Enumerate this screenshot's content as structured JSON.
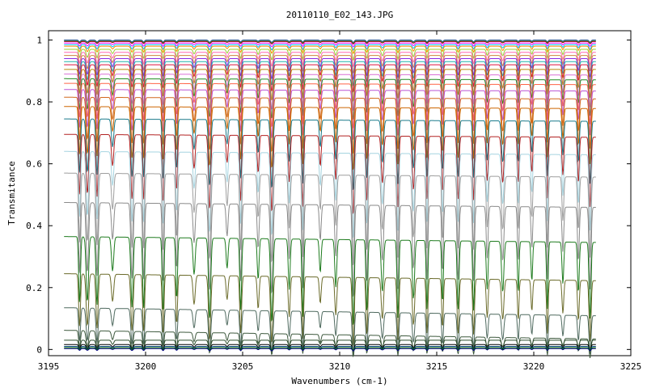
{
  "chart_data": {
    "type": "line",
    "title": "20110110_E02_143.JPG",
    "xlabel": "Wavenumbers (cm-1)",
    "ylabel": "Transmitance",
    "xlim": [
      3195,
      3225
    ],
    "ylim": [
      -0.02,
      1.03
    ],
    "x_data_range": [
      3195.8,
      3223.2
    ],
    "xticks": [
      3195,
      3200,
      3205,
      3210,
      3215,
      3220,
      3225
    ],
    "yticks": [
      0,
      0.2,
      0.4,
      0.6,
      0.8,
      1
    ],
    "ytick_labels": [
      "0",
      "0.2",
      "0.4",
      "0.6",
      "0.8",
      "1"
    ],
    "grid": false,
    "legend": "none",
    "absorption_lines_cm1": [
      3196.6,
      3197.0,
      3197.5,
      3198.3,
      3199.3,
      3199.9,
      3200.9,
      3201.6,
      3202.5,
      3203.3,
      3204.2,
      3204.9,
      3205.8,
      3206.5,
      3207.4,
      3208.1,
      3209.0,
      3209.8,
      3210.7,
      3211.4,
      3212.2,
      3213.0,
      3213.8,
      3214.5,
      3215.3,
      3216.1,
      3216.9,
      3217.6,
      3218.4,
      3219.2,
      3219.9,
      3220.7,
      3221.5,
      3222.3,
      3222.9
    ],
    "series": [
      {
        "baseline": 1.0,
        "color": "#1f3f9f"
      },
      {
        "baseline": 0.998,
        "color": "#2e8b57"
      },
      {
        "baseline": 0.995,
        "color": "#8b0000"
      },
      {
        "baseline": 0.99,
        "color": "#ff00ff"
      },
      {
        "baseline": 0.985,
        "color": "#00bfff"
      },
      {
        "baseline": 0.98,
        "color": "#ff8c00"
      },
      {
        "baseline": 0.97,
        "color": "#9acd32"
      },
      {
        "baseline": 0.96,
        "color": "#ff69b4"
      },
      {
        "baseline": 0.95,
        "color": "#cd853f"
      },
      {
        "baseline": 0.94,
        "color": "#8a2be2"
      },
      {
        "baseline": 0.93,
        "color": "#20b2aa"
      },
      {
        "baseline": 0.92,
        "color": "#dc143c"
      },
      {
        "baseline": 0.905,
        "color": "#b8860b"
      },
      {
        "baseline": 0.89,
        "color": "#da70d6"
      },
      {
        "baseline": 0.875,
        "color": "#228b22"
      },
      {
        "baseline": 0.86,
        "color": "#ff6347"
      },
      {
        "baseline": 0.84,
        "color": "#ba55d3"
      },
      {
        "baseline": 0.815,
        "color": "#d2691e"
      },
      {
        "baseline": 0.785,
        "color": "#cd6600"
      },
      {
        "baseline": 0.745,
        "color": "#1a7a8a"
      },
      {
        "baseline": 0.695,
        "color": "#b22222"
      },
      {
        "baseline": 0.64,
        "color": "#a6d4e0"
      },
      {
        "baseline": 0.57,
        "color": "#9e9e9e"
      },
      {
        "baseline": 0.475,
        "color": "#8a8a8a"
      },
      {
        "baseline": 0.365,
        "color": "#1e7b1e"
      },
      {
        "baseline": 0.245,
        "color": "#6b6b2a"
      },
      {
        "baseline": 0.135,
        "color": "#4f6a5f"
      },
      {
        "baseline": 0.062,
        "color": "#3f5a3f"
      },
      {
        "baseline": 0.03,
        "color": "#2f4f2f"
      },
      {
        "baseline": 0.016,
        "color": "#000000"
      },
      {
        "baseline": 0.01,
        "color": "#104e8b"
      },
      {
        "baseline": 0.006,
        "color": "#006400"
      },
      {
        "baseline": 0.003,
        "color": "#000080"
      }
    ]
  }
}
